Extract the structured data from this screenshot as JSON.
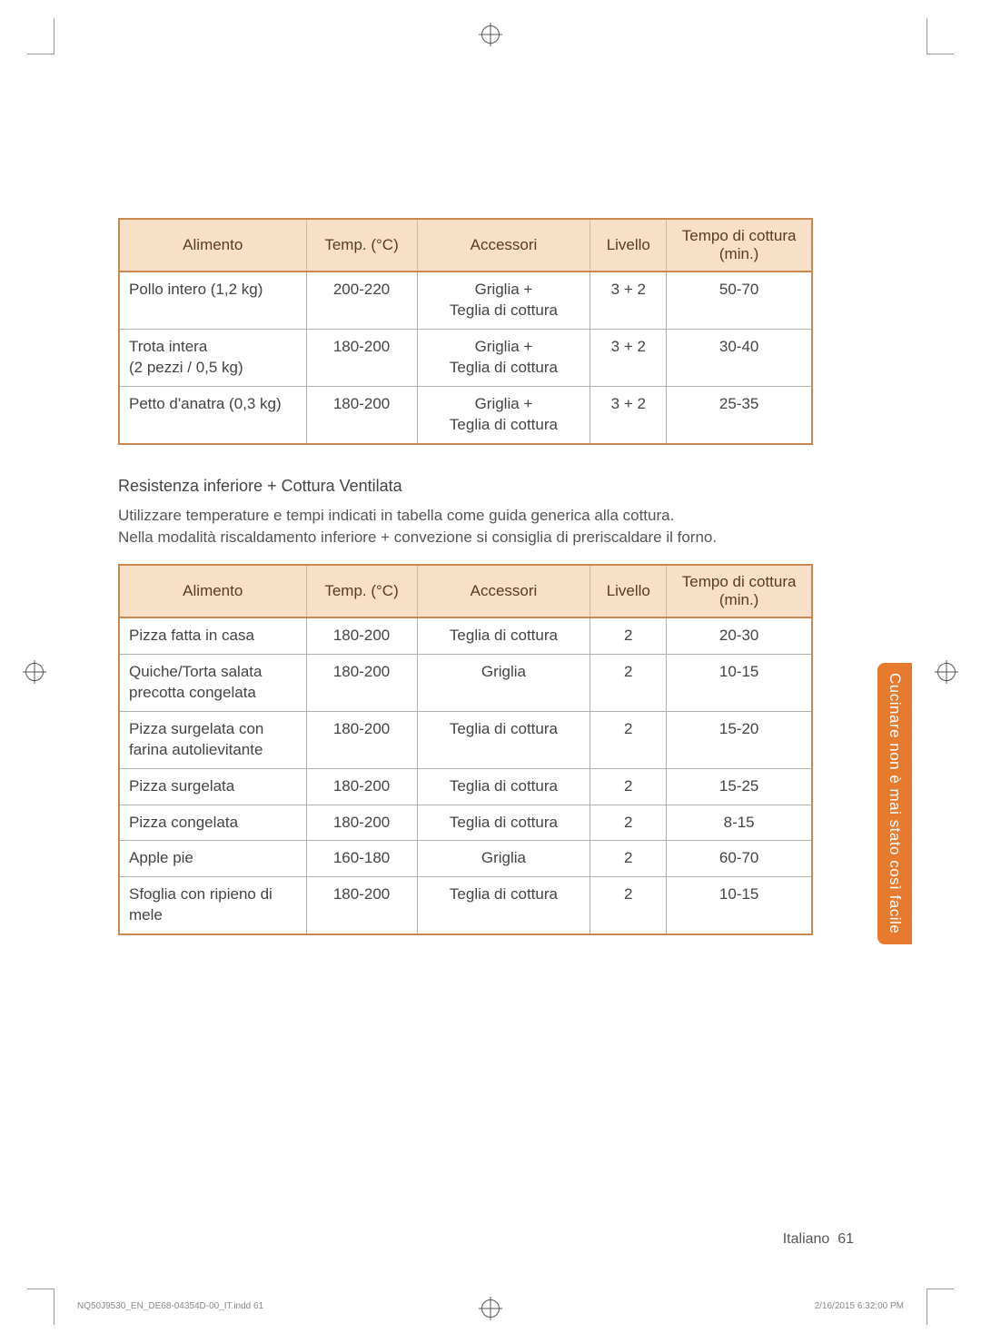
{
  "crop_color": "#999999",
  "header_bg": "#f8e0c8",
  "header_border": "#c88850",
  "cell_border": "#b0b0b0",
  "tab_bg": "#e67a2e",
  "table1": {
    "headers": [
      "Alimento",
      "Temp. (°C)",
      "Accessori",
      "Livello",
      "Tempo di cottura (min.)"
    ],
    "rows": [
      [
        "Pollo intero (1,2 kg)",
        "200-220",
        "Griglia +\nTeglia di cottura",
        "3 + 2",
        "50-70"
      ],
      [
        "Trota intera\n(2 pezzi / 0,5 kg)",
        "180-200",
        "Griglia +\nTeglia di cottura",
        "3 + 2",
        "30-40"
      ],
      [
        "Petto d'anatra (0,3 kg)",
        "180-200",
        "Griglia +\nTeglia di cottura",
        "3 + 2",
        "25-35"
      ]
    ]
  },
  "section": {
    "title": "Resistenza inferiore + Cottura Ventilata",
    "intro1": "Utilizzare temperature e tempi indicati in tabella come guida generica alla cottura.",
    "intro2": "Nella modalità riscaldamento inferiore + convezione si consiglia di preriscaldare il forno."
  },
  "table2": {
    "headers": [
      "Alimento",
      "Temp. (°C)",
      "Accessori",
      "Livello",
      "Tempo di cottura (min.)"
    ],
    "rows": [
      [
        "Pizza fatta in casa",
        "180-200",
        "Teglia di cottura",
        "2",
        "20-30"
      ],
      [
        "Quiche/Torta salata precotta congelata",
        "180-200",
        "Griglia",
        "2",
        "10-15"
      ],
      [
        "Pizza surgelata con farina autolievitante",
        "180-200",
        "Teglia di cottura",
        "2",
        "15-20"
      ],
      [
        "Pizza surgelata",
        "180-200",
        "Teglia di cottura",
        "2",
        "15-25"
      ],
      [
        "Pizza congelata",
        "180-200",
        "Teglia di cottura",
        "2",
        "8-15"
      ],
      [
        "Apple pie",
        "160-180",
        "Griglia",
        "2",
        "60-70"
      ],
      [
        "Sfoglia con ripieno di mele",
        "180-200",
        "Teglia di cottura",
        "2",
        "10-15"
      ]
    ]
  },
  "side_tab": "Cucinare non è mai stato così facile",
  "footer": {
    "lang": "Italiano",
    "page": "61",
    "file": "NQ50J9530_EN_DE68-04354D-00_IT.indd   61",
    "date": "2/16/2015   6:32:00 PM"
  }
}
